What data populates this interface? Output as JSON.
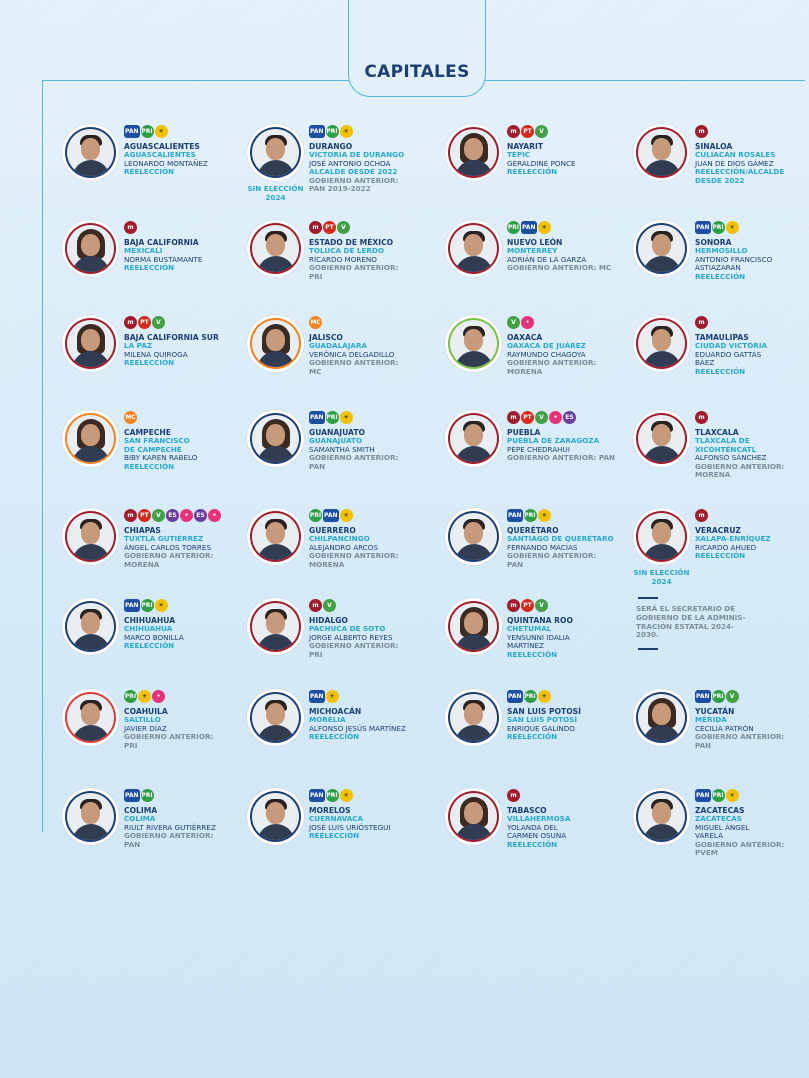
{
  "section_title": "CAPITALES",
  "party_colors": {
    "PAN": "#1e4fa3",
    "PRI": "#2f9e44",
    "PRD": "#f2c200",
    "MORENA": "#a11d2e",
    "PT": "#d52b1e",
    "PVEM": "#43a047",
    "MC": "#f58220",
    "PES": "#6a3fa0",
    "OTRO": "#e7337a"
  },
  "entries": [
    {
      "state": "AGUASCALIENTES",
      "capital": "AGUASCALIENTES",
      "name": "LEONARDO MONTAÑEZ",
      "lines": [
        {
          "t": "REELECCIÓN",
          "c": "teal"
        }
      ],
      "parties": [
        "PAN",
        "PRI",
        "PRD"
      ],
      "ring": "#1d3f73",
      "female": false
    },
    {
      "state": "DURANGO",
      "capital": "VICTORIA DE DURANGO",
      "name": "JOSÉ ANTONIO OCHOA",
      "lines": [
        {
          "t": "ALCALDE DESDE 2022",
          "c": "teal"
        },
        {
          "t": "GOBIERNO ANTERIOR:",
          "c": "gray"
        },
        {
          "t": "PAN 2019-2022",
          "c": "gray"
        }
      ],
      "parties": [
        "PAN",
        "PRI",
        "PRD"
      ],
      "ring": "#1d3f73",
      "female": false,
      "sin": "SIN ELECCIÓN 2024"
    },
    {
      "state": "NAYARIT",
      "capital": "TEPIC",
      "name": "GERALDINE PONCE",
      "lines": [
        {
          "t": "REELECCIÓN",
          "c": "teal"
        }
      ],
      "parties": [
        "MORENA",
        "PT",
        "PVEM"
      ],
      "ring": "#a11d2e",
      "female": true
    },
    {
      "state": "SINALOA",
      "capital": "CULIACÁN ROSALES",
      "name": "JUAN DE DIOS GÁMEZ",
      "lines": [
        {
          "t": "REELECCIÓN/ALCALDE",
          "c": "teal"
        },
        {
          "t": "DESDE 2022",
          "c": "teal"
        }
      ],
      "parties": [
        "MORENA"
      ],
      "ring": "#a11d2e",
      "female": false
    },
    {
      "state": "BAJA CALIFORNIA",
      "capital": "MEXICALI",
      "name": "NORMA BUSTAMANTE",
      "lines": [
        {
          "t": "REELECCIÓN",
          "c": "teal"
        }
      ],
      "parties": [
        "MORENA"
      ],
      "ring": "#a11d2e",
      "female": true
    },
    {
      "state": "ESTADO DE MÉXICO",
      "capital": "TOLUCA DE LERDO",
      "name": "RICARDO MORENO",
      "lines": [
        {
          "t": "GOBIERNO ANTERIOR:",
          "c": "gray"
        },
        {
          "t": "PRI",
          "c": "gray"
        }
      ],
      "parties": [
        "MORENA",
        "PT",
        "PVEM"
      ],
      "ring": "#a11d2e",
      "female": false
    },
    {
      "state": "NUEVO LEÓN",
      "capital": "MONTERREY",
      "name": "ADRIÁN DE LA GARZA",
      "lines": [
        {
          "t": "GOBIERNO ANTERIOR: MC",
          "c": "gray"
        }
      ],
      "parties": [
        "PRI",
        "PAN",
        "PRD"
      ],
      "ring": "#a11d2e",
      "female": false
    },
    {
      "state": "SONORA",
      "capital": "HERMOSILLO",
      "name": "ANTONIO FRANCISCO",
      "name2": "ASTIAZARÁN",
      "lines": [
        {
          "t": "REELECCIÓN",
          "c": "teal"
        }
      ],
      "parties": [
        "PAN",
        "PRI",
        "PRD"
      ],
      "ring": "#1d3f73",
      "female": false
    },
    {
      "state": "BAJA CALIFORNIA SUR",
      "capital": "LA PAZ",
      "name": "MILENA QUIROGA",
      "lines": [
        {
          "t": "REELECCIÓN",
          "c": "teal"
        }
      ],
      "parties": [
        "MORENA",
        "PT",
        "PVEM"
      ],
      "ring": "#a11d2e",
      "female": true
    },
    {
      "state": "JALISCO",
      "capital": "GUADALAJARA",
      "name": "VERÓNICA DELGADILLO",
      "lines": [
        {
          "t": "GOBIERNO ANTERIOR:",
          "c": "gray"
        },
        {
          "t": "MC",
          "c": "gray"
        }
      ],
      "parties": [
        "MC"
      ],
      "ring": "#f58220",
      "female": true
    },
    {
      "state": "OAXACA",
      "capital": "OAXACA DE JUÁREZ",
      "name": "RAYMUNDO CHAGOYA",
      "lines": [
        {
          "t": "GOBIERNO ANTERIOR:",
          "c": "gray"
        },
        {
          "t": "MORENA",
          "c": "gray"
        }
      ],
      "parties": [
        "PVEM",
        "OTRO"
      ],
      "ring": "#7cc144",
      "female": false
    },
    {
      "state": "TAMAULIPAS",
      "capital": "CIUDAD VICTORIA",
      "name": "EDUARDO GATTÁS",
      "name2": "BÁEZ",
      "lines": [
        {
          "t": "REELECCIÓN",
          "c": "teal"
        }
      ],
      "parties": [
        "MORENA"
      ],
      "ring": "#a11d2e",
      "female": false
    },
    {
      "state": "CAMPECHE",
      "capital": "SAN FRANCISCO",
      "capital2": "DE CAMPECHE",
      "name": "BIBY KAREN RABELO",
      "lines": [
        {
          "t": "REELECCIÓN",
          "c": "teal"
        }
      ],
      "parties": [
        "MC"
      ],
      "ring": "#f58220",
      "female": true
    },
    {
      "state": "GUANAJUATO",
      "capital": "GUANAJUATO",
      "name": "SAMANTHA SMITH",
      "lines": [
        {
          "t": "GOBIERNO ANTERIOR:",
          "c": "gray"
        },
        {
          "t": "PAN",
          "c": "gray"
        }
      ],
      "parties": [
        "PAN",
        "PRI",
        "PRD"
      ],
      "ring": "#1d3f73",
      "female": true
    },
    {
      "state": "PUEBLA",
      "capital": "PUEBLA DE ZARAGOZA",
      "name": "PEPE CHEDRAHUI",
      "lines": [
        {
          "t": "GOBIERNO ANTERIOR: PAN",
          "c": "gray"
        }
      ],
      "parties": [
        "MORENA",
        "PT",
        "PVEM",
        "OTRO",
        "PES"
      ],
      "ring": "#a11d2e",
      "female": false
    },
    {
      "state": "TLAXCALA",
      "capital": "TLAXCALA DE",
      "capital2": "XICOHTÉNCATL",
      "name": "ALFONSO SÁNCHEZ",
      "lines": [
        {
          "t": "GOBIERNO ANTERIOR:",
          "c": "gray"
        },
        {
          "t": "MORENA",
          "c": "gray"
        }
      ],
      "parties": [
        "MORENA"
      ],
      "ring": "#a11d2e",
      "female": false
    },
    {
      "state": "CHIAPAS",
      "capital": "TUXTLA GUTIÉRREZ",
      "name": "ÁNGEL CARLOS TORRES",
      "lines": [
        {
          "t": "GOBIERNO ANTERIOR:",
          "c": "gray"
        },
        {
          "t": "MORENA",
          "c": "gray"
        }
      ],
      "parties": [
        "MORENA",
        "PT",
        "PVEM",
        "PES",
        "OTRO",
        "PES",
        "OTRO"
      ],
      "ring": "#a11d2e",
      "female": false
    },
    {
      "state": "GUERRERO",
      "capital": "CHILPANCINGO",
      "name": "ALEJANDRO ARCOS",
      "lines": [
        {
          "t": "GOBIERNO ANTERIOR:",
          "c": "gray"
        },
        {
          "t": "MORENA",
          "c": "gray"
        }
      ],
      "parties": [
        "PRI",
        "PAN",
        "PRD"
      ],
      "ring": "#a11d2e",
      "female": false
    },
    {
      "state": "QUERÉTARO",
      "capital": "SANTIAGO DE QUERÉTARO",
      "name": "FERNANDO MACÍAS",
      "lines": [
        {
          "t": "GOBIERNO ANTERIOR:",
          "c": "gray"
        },
        {
          "t": "PAN",
          "c": "gray"
        }
      ],
      "parties": [
        "PAN",
        "PRI",
        "PRD"
      ],
      "ring": "#1d3f73",
      "female": false
    },
    {
      "state": "VERACRUZ",
      "capital": "XALAPA-ENRÍQUEZ",
      "name": "RICARDO AHUED",
      "lines": [
        {
          "t": "REELECCIÓN",
          "c": "teal"
        }
      ],
      "parties": [
        "MORENA"
      ],
      "ring": "#a11d2e",
      "female": false,
      "sin": "SIN ELECCIÓN 2024"
    },
    {
      "state": "CHIHUAHUA",
      "capital": "CHIHUAHUA",
      "name": "MARCO BONILLA",
      "lines": [
        {
          "t": "REELECCIÓN",
          "c": "teal"
        }
      ],
      "parties": [
        "PAN",
        "PRI",
        "PRD"
      ],
      "ring": "#1d3f73",
      "female": false
    },
    {
      "state": "HIDALGO",
      "capital": "PACHUCA DE SOTO",
      "name": "JORGE ALBERTO REYES",
      "lines": [
        {
          "t": "GOBIERNO ANTERIOR:",
          "c": "gray"
        },
        {
          "t": "PRI",
          "c": "gray"
        }
      ],
      "parties": [
        "MORENA",
        "PVEM"
      ],
      "ring": "#a11d2e",
      "female": false
    },
    {
      "state": "QUINTANA ROO",
      "capital": "CHETUMAL",
      "name": "YENSUNNI IDALIA",
      "name2": "MARTÍNEZ",
      "lines": [
        {
          "t": "REELECCIÓN",
          "c": "teal"
        }
      ],
      "parties": [
        "MORENA",
        "PT",
        "PVEM"
      ],
      "ring": "#a11d2e",
      "female": true
    },
    null,
    {
      "state": "COAHUILA",
      "capital": "SALTILLO",
      "name": "JAVIER DÍAZ",
      "lines": [
        {
          "t": "GOBIERNO ANTERIOR:",
          "c": "gray"
        },
        {
          "t": "PRI",
          "c": "gray"
        }
      ],
      "parties": [
        "PRI",
        "PRD",
        "OTRO"
      ],
      "ring": "#e03a3a",
      "female": false
    },
    {
      "state": "MICHOACÁN",
      "capital": "MORELIA",
      "name": "ALFONSO JESÚS MARTÍNEZ",
      "lines": [
        {
          "t": "REELECCIÓN",
          "c": "teal"
        }
      ],
      "parties": [
        "PAN",
        "PRD"
      ],
      "ring": "#1d3f73",
      "female": false
    },
    {
      "state": "SAN LUIS POTOSÍ",
      "capital": "SAN LUIS POTOSÍ",
      "name": "ENRIQUE GALINDO",
      "lines": [
        {
          "t": "REELECCIÓN",
          "c": "teal"
        }
      ],
      "parties": [
        "PAN",
        "PRI",
        "PRD"
      ],
      "ring": "#1d3f73",
      "female": false
    },
    {
      "state": "YUCATÁN",
      "capital": "MÉRIDA",
      "name": "CECILIA PATRÓN",
      "lines": [
        {
          "t": "GOBIERNO ANTERIOR:",
          "c": "gray"
        },
        {
          "t": "PAN",
          "c": "gray"
        }
      ],
      "parties": [
        "PAN",
        "PRI",
        "PVEM"
      ],
      "ring": "#1d3f73",
      "female": true
    },
    {
      "state": "COLIMA",
      "capital": "COLIMA",
      "name": "RIULT RIVERA GUTIÉRREZ",
      "lines": [
        {
          "t": "GOBIERNO ANTERIOR:",
          "c": "gray"
        },
        {
          "t": "PAN",
          "c": "gray"
        }
      ],
      "parties": [
        "PAN",
        "PRI"
      ],
      "ring": "#1d3f73",
      "female": false
    },
    {
      "state": "MORELOS",
      "capital": "CUERNAVACA",
      "name": "JOSÉ LUIS URIÓSTEGUI",
      "lines": [
        {
          "t": "REELECCIÓN",
          "c": "teal"
        }
      ],
      "parties": [
        "PAN",
        "PRI",
        "PRD"
      ],
      "ring": "#1d3f73",
      "female": false
    },
    {
      "state": "TABASCO",
      "capital": "VILLAHERMOSA",
      "name": "YOLANDA DEL",
      "name2": "CARMEN OSUNA",
      "lines": [
        {
          "t": "REELECCIÓN",
          "c": "teal"
        }
      ],
      "parties": [
        "MORENA"
      ],
      "ring": "#a11d2e",
      "female": true
    },
    {
      "state": "ZACATECAS",
      "capital": "ZACATECAS",
      "name": "MIGUEL ÁNGEL",
      "name2": "VARELA",
      "lines": [
        {
          "t": "GOBIERNO ANTERIOR:",
          "c": "gray"
        },
        {
          "t": "PVEM",
          "c": "gray"
        }
      ],
      "parties": [
        "PAN",
        "PRI",
        "PRD"
      ],
      "ring": "#1d3f73",
      "female": false
    }
  ],
  "veracruz_note": "SERÁ EL SECRETARIO DE GOBIERNO DE LA ADMINIS- TRACIÓN ESTATAL 2024-2030."
}
